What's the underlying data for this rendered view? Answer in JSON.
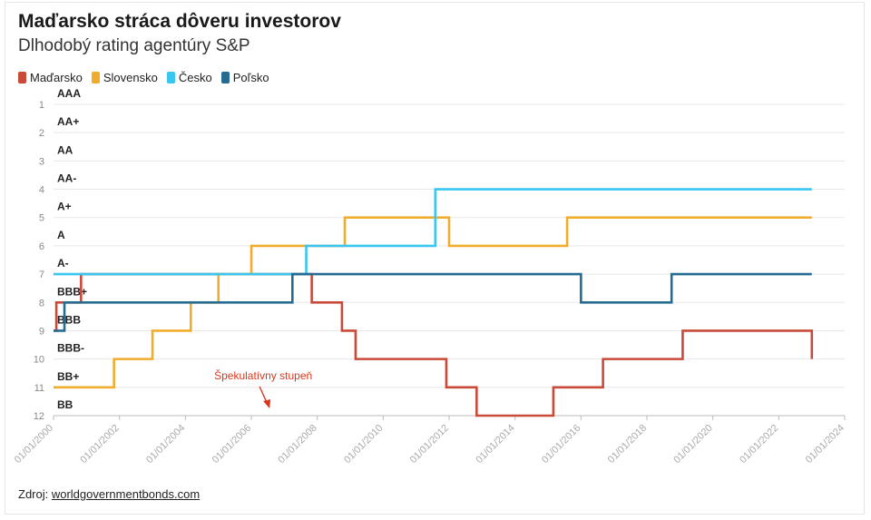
{
  "title": "Maďarsko stráca dôveru investorov",
  "subtitle": "Dlhodobý rating agentúry S&P",
  "legend": [
    {
      "label": "Maďarsko",
      "color": "#c94a38"
    },
    {
      "label": "Slovensko",
      "color": "#f0ad2d"
    },
    {
      "label": "Česko",
      "color": "#39c6f0"
    },
    {
      "label": "Poľsko",
      "color": "#256b92"
    }
  ],
  "source": {
    "prefix": "Zdroj: ",
    "link": "worldgovernmentbonds.com"
  },
  "chart_data": {
    "type": "line",
    "step": true,
    "x_axis": {
      "min": "2000-01-01",
      "max": "2024-01-01",
      "ticks": [
        "01/01/2000",
        "01/01/2002",
        "01/01/2004",
        "01/01/2006",
        "01/01/2008",
        "01/01/2010",
        "01/01/2012",
        "01/01/2014",
        "01/01/2016",
        "01/01/2018",
        "01/01/2020",
        "01/01/2022",
        "01/01/2024"
      ]
    },
    "y_axis": {
      "min": 1,
      "max": 12,
      "inverted": true,
      "ticks": [
        "1",
        "2",
        "3",
        "4",
        "5",
        "6",
        "7",
        "8",
        "9",
        "10",
        "11",
        "12"
      ],
      "rating_labels": [
        "AAA",
        "AA+",
        "AA",
        "AA-",
        "A+",
        "A",
        "A-",
        "BBB+",
        "BBB",
        "BBB-",
        "BB+",
        "BB"
      ]
    },
    "annotation": {
      "text": "Špekulatívny stupeň",
      "x": "2006-08-01",
      "y": 10.5
    },
    "grid": true,
    "series": [
      {
        "name": "Maďarsko",
        "color": "#c94a38",
        "points": [
          [
            "2000-01-01",
            9
          ],
          [
            "2000-02-01",
            8
          ],
          [
            "2000-11-01",
            7
          ],
          [
            "2007-10-01",
            7
          ],
          [
            "2007-11-01",
            8
          ],
          [
            "2008-10-01",
            9
          ],
          [
            "2009-03-01",
            10
          ],
          [
            "2011-12-01",
            11
          ],
          [
            "2012-11-01",
            12
          ],
          [
            "2015-03-01",
            11
          ],
          [
            "2016-09-01",
            10
          ],
          [
            "2019-02-01",
            9
          ],
          [
            "2023-01-01",
            9
          ],
          [
            "2023-01-02",
            10
          ]
        ]
      },
      {
        "name": "Slovensko",
        "color": "#f0ad2d",
        "points": [
          [
            "2000-01-01",
            11
          ],
          [
            "2001-11-01",
            10
          ],
          [
            "2003-01-01",
            9
          ],
          [
            "2004-03-01",
            8
          ],
          [
            "2005-01-01",
            7
          ],
          [
            "2006-01-01",
            6
          ],
          [
            "2008-11-01",
            5
          ],
          [
            "2012-01-01",
            6
          ],
          [
            "2015-08-01",
            5
          ],
          [
            "2023-01-01",
            5
          ]
        ]
      },
      {
        "name": "Česko",
        "color": "#39c6f0",
        "points": [
          [
            "2000-01-01",
            7
          ],
          [
            "2007-09-01",
            6
          ],
          [
            "2011-08-01",
            4
          ],
          [
            "2023-01-01",
            4
          ]
        ]
      },
      {
        "name": "Poľsko",
        "color": "#256b92",
        "points": [
          [
            "2000-01-01",
            9
          ],
          [
            "2000-05-01",
            8
          ],
          [
            "2007-04-01",
            7
          ],
          [
            "2016-01-01",
            8
          ],
          [
            "2018-10-01",
            7
          ],
          [
            "2023-01-01",
            7
          ]
        ]
      }
    ]
  }
}
